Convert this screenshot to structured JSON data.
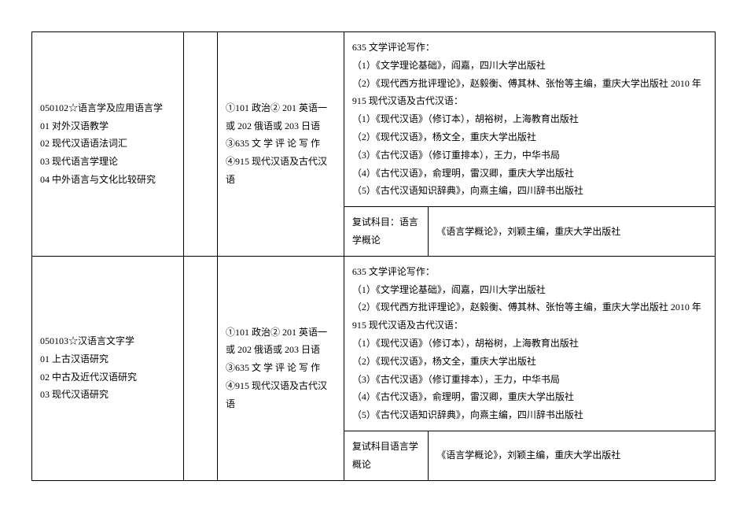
{
  "rows": [
    {
      "program": "050102☆语言学及应用语言学\n01 对外汉语教学\n02 现代汉语语法词汇\n03 现代语言学理论\n04 中外语言与文化比较研究",
      "quota": "",
      "exam": "①101 政治② 201 英语一或 202 俄语或 203 日语③635 文 学 评 论 写 作④915 现代汉语及古代汉语",
      "refs": "635 文学评论写作：\n（1）《文学理论基础》，阎嘉，四川大学出版社\n（2）《现代西方批评理论》，赵毅衡、傅其林、张怡等主编，重庆大学出版社 2010 年\n915 现代汉语及古代汉语：\n（1）《现代汉语》（修订本），胡裕树，上海教育出版社\n（2）《现代汉语》，杨文全，重庆大学出版社\n（3）《古代汉语》（修订重排本），王力，中华书局\n（4）《古代汉语》，俞理明，雷汉卿，重庆大学出版社\n（5）《古代汉语知识辞典》，向熹主编，四川辞书出版社",
      "retest_subject": "复试科目：语言学概论",
      "retest_ref": "《语言学概论》，刘颖主编，重庆大学出版社"
    },
    {
      "program": "050103☆汉语言文字学\n01 上古汉语研究\n02 中古及近代汉语研究\n03 现代汉语研究",
      "quota": "",
      "exam": "①101 政治② 201 英语一或 202 俄语或 203 日语③635 文 学 评 论 写 作④915 现代汉语及古代汉语",
      "refs": "635 文学评论写作：\n（1）《文学理论基础》，阎嘉，四川大学出版社\n（2）《现代西方批评理论》，赵毅衡、傅其林、张怡等主编，重庆大学出版社 2010 年\n915 现代汉语及古代汉语：\n（1）《现代汉语》（修订本），胡裕树，上海教育出版社\n（2）《现代汉语》，杨文全，重庆大学出版社\n（3）《古代汉语》（修订重排本），王力，中华书局\n（4）《古代汉语》，俞理明，雷汉卿，重庆大学出版社\n（5）《古代汉语知识辞典》，向熹主编，四川辞书出版社",
      "retest_subject": "复试科目语言学概论",
      "retest_ref": "《语言学概论》，刘颖主编，重庆大学出版社"
    }
  ]
}
